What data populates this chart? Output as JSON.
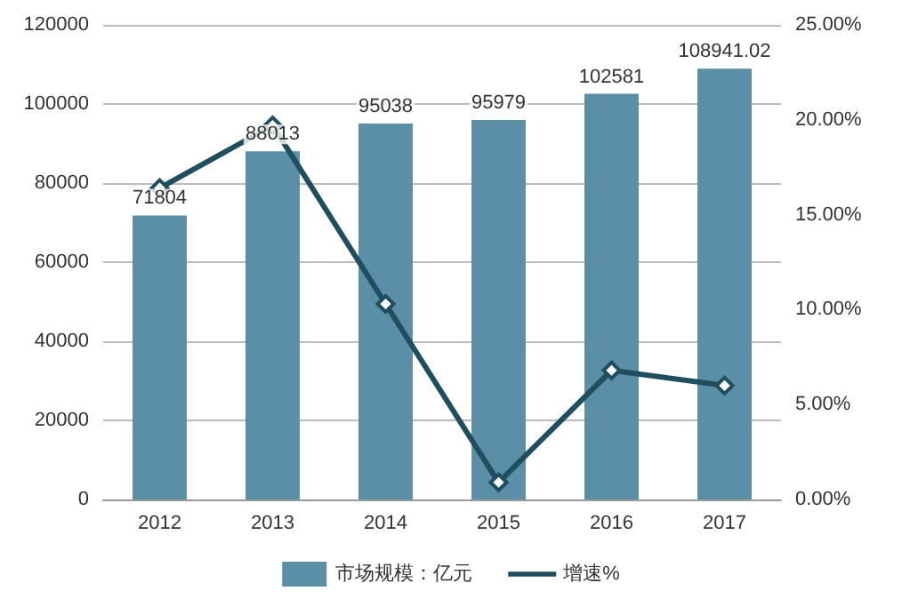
{
  "chart_data": {
    "type": "bar",
    "categories": [
      "2012",
      "2013",
      "2014",
      "2015",
      "2016",
      "2017"
    ],
    "series": [
      {
        "name": "市场规模：亿元",
        "color": "#5b8fa8",
        "values": [
          71804,
          88013,
          95038,
          95979,
          102581,
          108941.02
        ],
        "value_labels": [
          "71804",
          "88013",
          "95038",
          "95979",
          "102581",
          "108941.02"
        ]
      },
      {
        "name": "增速%",
        "type": "line",
        "axis": "y2",
        "color": "#1f4e5f",
        "marker": "diamond",
        "values": [
          16.4,
          19.7,
          10.3,
          0.9,
          6.8,
          6.0
        ]
      }
    ],
    "ylim": [
      0,
      120000
    ],
    "yticks": [
      0,
      20000,
      40000,
      60000,
      80000,
      100000,
      120000
    ],
    "y2lim": [
      0,
      25
    ],
    "y2ticks": [
      {
        "value": 0,
        "label": "0.00%"
      },
      {
        "value": 5,
        "label": "5.00%"
      },
      {
        "value": 10,
        "label": "10.00%"
      },
      {
        "value": 15,
        "label": "15.00%"
      },
      {
        "value": 20,
        "label": "20.00%"
      },
      {
        "value": 25,
        "label": "25.00%"
      }
    ],
    "grid": "y",
    "legend": "bottom"
  }
}
